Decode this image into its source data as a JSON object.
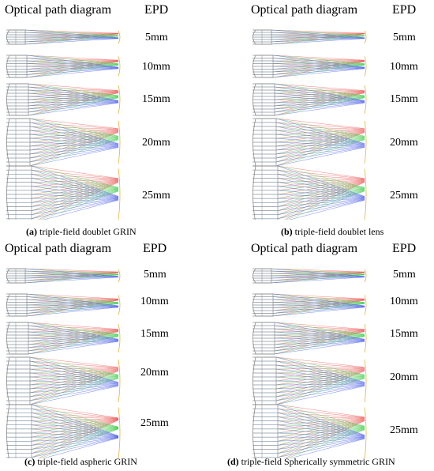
{
  "colors": {
    "red": "#e8413e",
    "green": "#2fc63a",
    "blue": "#3a4ee6",
    "lens": "#8a8a8a",
    "image": "#e6b23a"
  },
  "panels": [
    {
      "title": "Optical path diagram",
      "epd_header": "EPD",
      "caption_tag": "(a)",
      "caption_text": " triple-field doublet GRIN",
      "epd": [
        "5mm",
        "10mm",
        "15mm",
        "20mm",
        "25mm"
      ],
      "rays": [
        7,
        9,
        11,
        13,
        15
      ],
      "convergence": [
        0.62,
        0.55,
        0.5,
        0.45,
        0.55
      ]
    },
    {
      "title": "Optical path diagram",
      "epd_header": "EPD",
      "caption_tag": "(b)",
      "caption_text": " triple-field doublet lens",
      "epd": [
        "5mm",
        "10mm",
        "15mm",
        "20mm",
        "25mm"
      ],
      "rays": [
        7,
        9,
        11,
        13,
        15
      ],
      "convergence": [
        0.62,
        0.55,
        0.5,
        0.45,
        0.55
      ]
    },
    {
      "title": "Optical path diagram",
      "epd_header": "EPD",
      "caption_tag": "(c)",
      "caption_text": " triple-field aspheric GRIN",
      "epd": [
        "5mm",
        "10mm",
        "15mm",
        "20mm",
        "25mm"
      ],
      "rays": [
        7,
        9,
        11,
        13,
        15
      ],
      "convergence": [
        0.62,
        0.55,
        0.5,
        0.45,
        0.75
      ]
    },
    {
      "title": "Optical path diagram",
      "epd_header": "EPD",
      "caption_tag": "(d)",
      "caption_text": " triple-field Spherically symmetric GRIN",
      "epd": [
        "5mm",
        "10mm",
        "15mm",
        "20mm",
        "25mm"
      ],
      "rays": [
        7,
        9,
        11,
        13,
        15
      ],
      "convergence": [
        0.62,
        0.55,
        0.5,
        0.45,
        0.55
      ]
    }
  ]
}
